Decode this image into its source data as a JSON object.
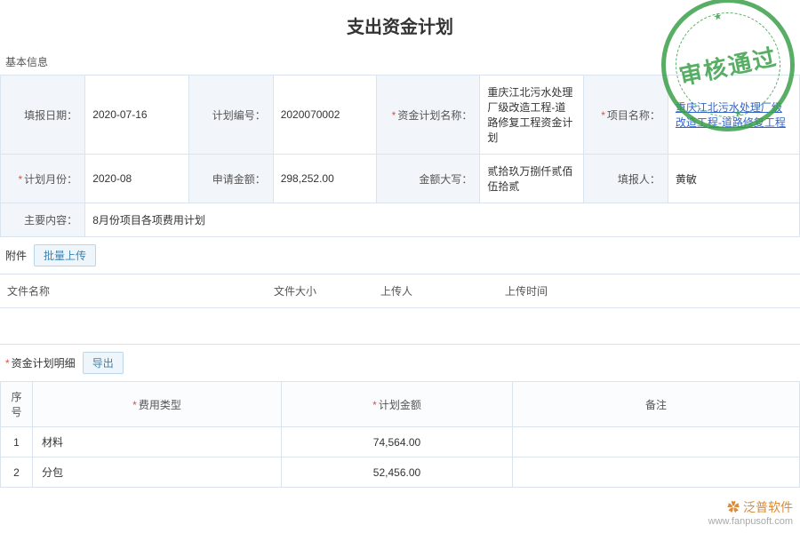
{
  "title": "支出资金计划",
  "stamp_text": "审核通过",
  "sections": {
    "basic_info": "基本信息",
    "attachments": "附件",
    "detail": "资金计划明细"
  },
  "info": {
    "report_date": {
      "label": "填报日期：",
      "value": "2020-07-16",
      "required": false
    },
    "plan_no": {
      "label": "计划编号：",
      "value": "2020070002",
      "required": false
    },
    "plan_name": {
      "label": "资金计划名称：",
      "value": "重庆江北污水处理厂级改造工程-道路修复工程资金计划",
      "required": true
    },
    "project_name": {
      "label": "项目名称：",
      "value": "重庆江北污水处理厂级改造工程-道路修复工程",
      "required": true,
      "link": true
    },
    "plan_month": {
      "label": "计划月份：",
      "value": "2020-08",
      "required": true
    },
    "apply_amount": {
      "label": "申请金额：",
      "value": "298,252.00",
      "required": false
    },
    "amount_cn": {
      "label": "金额大写：",
      "value": "贰拾玖万捌仟贰佰伍拾贰",
      "required": false
    },
    "reporter": {
      "label": "填报人：",
      "value": "黄敏",
      "required": false
    },
    "main_content": {
      "label": "主要内容：",
      "value": "8月份项目各项费用计划",
      "required": false
    }
  },
  "buttons": {
    "batch_upload": "批量上传",
    "export": "导出"
  },
  "attach_cols": {
    "name": "文件名称",
    "size": "文件大小",
    "uploader": "上传人",
    "time": "上传时间"
  },
  "detail_cols": {
    "seq": "序号",
    "type": "费用类型",
    "amount": "计划金额",
    "remark": "备注"
  },
  "detail_rows": [
    {
      "seq": "1",
      "type": "材料",
      "amount": "74,564.00",
      "remark": ""
    },
    {
      "seq": "2",
      "type": "分包",
      "amount": "52,456.00",
      "remark": ""
    }
  ],
  "watermark": {
    "brand": "泛普软件",
    "url": "www.fanpusoft.com"
  },
  "colors": {
    "border": "#d9e4ef",
    "label_bg": "#f2f6fa",
    "link": "#3366cc",
    "required": "#e74c3c",
    "stamp": "#3aa049"
  }
}
